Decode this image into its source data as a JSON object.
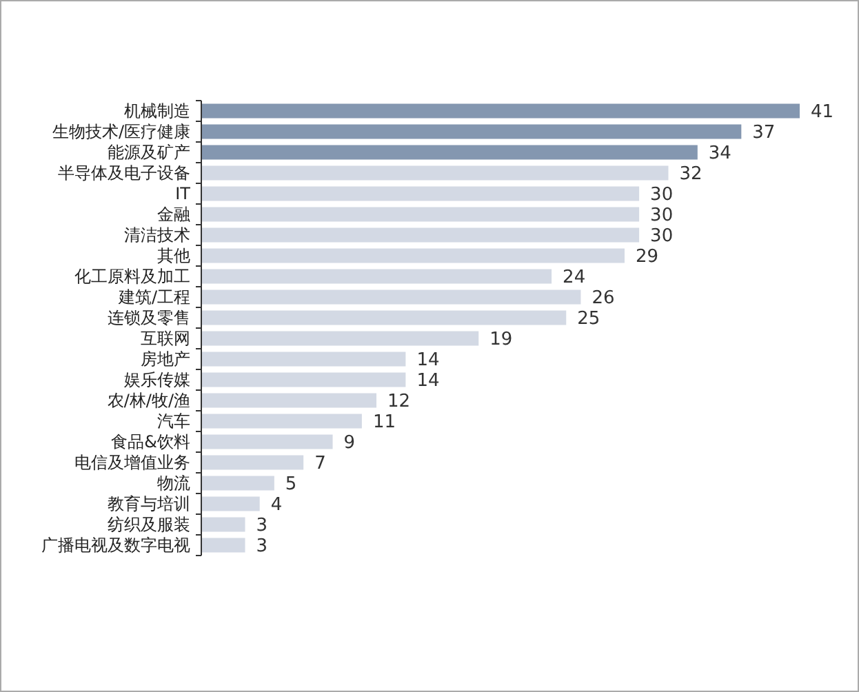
{
  "chart_data": {
    "type": "bar",
    "orientation": "horizontal",
    "data_labels": true,
    "categories": [
      "机械制造",
      "生物技术/医疗健康",
      "能源及矿产",
      "半导体及电子设备",
      "IT",
      "金融",
      "清洁技术",
      "其他",
      "化工原料及加工",
      "建筑/工程",
      "连锁及零售",
      "互联网",
      "房地产",
      "娱乐传媒",
      "农/林/牧/渔",
      "汽车",
      "食品&饮料",
      "电信及增值业务",
      "物流",
      "教育与培训",
      "纺织及服装",
      "广播电视及数字电视"
    ],
    "values": [
      41,
      37,
      34,
      32,
      30,
      30,
      30,
      29,
      24,
      26,
      25,
      19,
      14,
      14,
      12,
      11,
      9,
      7,
      5,
      4,
      3,
      3
    ],
    "colors": [
      "#8497b0",
      "#8497b0",
      "#8497b0",
      "#d3d9e4",
      "#d3d9e4",
      "#d3d9e4",
      "#d3d9e4",
      "#d3d9e4",
      "#d3d9e4",
      "#d3d9e4",
      "#d3d9e4",
      "#d3d9e4",
      "#d3d9e4",
      "#d3d9e4",
      "#d3d9e4",
      "#d3d9e4",
      "#d3d9e4",
      "#d3d9e4",
      "#d3d9e4",
      "#d3d9e4",
      "#d3d9e4",
      "#d3d9e4"
    ]
  }
}
